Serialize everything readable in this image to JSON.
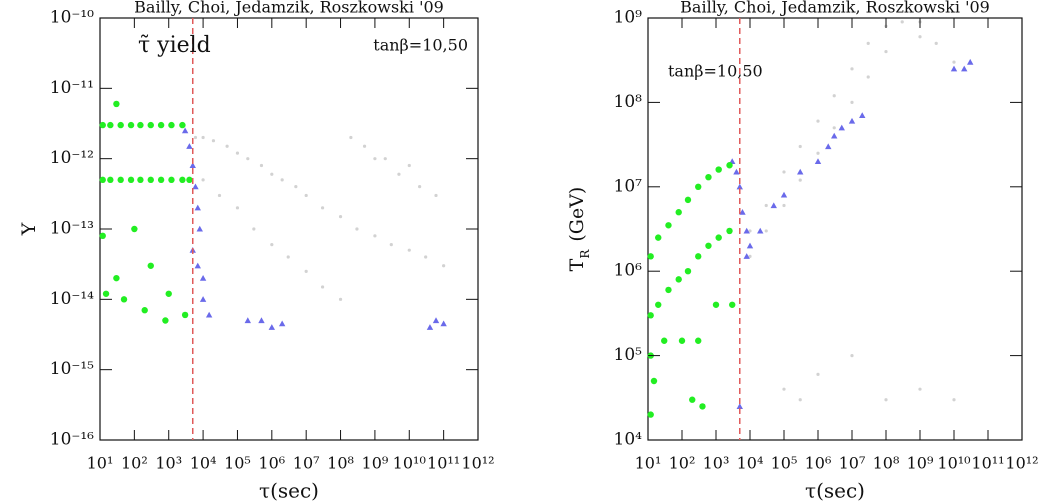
{
  "chart_data": [
    {
      "type": "scatter",
      "title": "Bailly, Choi, Jedamzik, Roszkowski '09",
      "annotations": [
        "τ̃ yield",
        "tanβ=10,50"
      ],
      "xlabel": "τ(sec)",
      "ylabel": "Y",
      "xlog": true,
      "ylog": true,
      "xlim": [
        10,
        1000000000000.0
      ],
      "ylim": [
        1e-16,
        1e-10
      ],
      "xticks": [
        {
          "value": 10,
          "label": "10¹"
        },
        {
          "value": 100,
          "label": "10²"
        },
        {
          "value": 1000,
          "label": "10³"
        },
        {
          "value": 10000.0,
          "label": "10⁴"
        },
        {
          "value": 100000.0,
          "label": "10⁵"
        },
        {
          "value": 1000000.0,
          "label": "10⁶"
        },
        {
          "value": 10000000.0,
          "label": "10⁷"
        },
        {
          "value": 100000000.0,
          "label": "10⁸"
        },
        {
          "value": 1000000000.0,
          "label": "10⁹"
        },
        {
          "value": 10000000000.0,
          "label": "10¹⁰"
        },
        {
          "value": 100000000000.0,
          "label": "10¹¹"
        },
        {
          "value": 1000000000000.0,
          "label": "10¹²"
        }
      ],
      "yticks": [
        {
          "value": 1e-16,
          "label": "10⁻¹⁶"
        },
        {
          "value": 1e-15,
          "label": "10⁻¹⁵"
        },
        {
          "value": 1e-14,
          "label": "10⁻¹⁴"
        },
        {
          "value": 1e-13,
          "label": "10⁻¹³"
        },
        {
          "value": 1e-12,
          "label": "10⁻¹²"
        },
        {
          "value": 1e-11,
          "label": "10⁻¹¹"
        },
        {
          "value": 1e-10,
          "label": "10⁻¹⁰"
        }
      ],
      "vline": {
        "value": 5000,
        "color": "#e05a5a"
      },
      "series": [
        {
          "color": "#d2d2d2",
          "marker": "dot",
          "x": [
            6000.0,
            10000.0,
            20000.0,
            50000.0,
            100000.0,
            200000.0,
            500000.0,
            1000000.0,
            2000000.0,
            5000000.0,
            10000000.0,
            30000000.0,
            100000000.0,
            300000000.0,
            1000000000.0,
            3000000000.0,
            10000000000.0,
            30000000000.0,
            100000000000.0,
            10000.0,
            30000.0,
            100000.0,
            300000.0,
            1000000.0,
            3000000.0,
            10000000.0,
            30000000.0,
            100000000.0,
            1000000000.0,
            10000000000.0,
            200000000.0,
            500000000.0,
            2000000000.0,
            5000000000.0,
            20000000000.0,
            60000000000.0
          ],
          "values": [
            2e-12,
            2e-12,
            1.8e-12,
            1.5e-12,
            1.2e-12,
            1e-12,
            8e-13,
            6e-13,
            5e-13,
            4e-13,
            3e-13,
            2e-13,
            1.5e-13,
            1e-13,
            8e-14,
            6e-14,
            5e-14,
            4e-14,
            3e-14,
            5e-13,
            3e-13,
            2e-13,
            1e-13,
            6e-14,
            4e-14,
            2.5e-14,
            1.5e-14,
            1e-14,
            1e-12,
            8e-13,
            2e-12,
            1.5e-12,
            1e-12,
            6e-13,
            4e-13,
            3e-13
          ]
        },
        {
          "color": "#6a6aea",
          "marker": "triangle",
          "x": [
            3000.0,
            4000.0,
            5000.0,
            6000.0,
            7000.0,
            8000.0,
            5000.0,
            7000.0,
            10000.0,
            10000.0,
            15000.0,
            200000.0,
            500000.0,
            1000000.0,
            2000000.0,
            40000000000.0,
            60000000000.0,
            100000000000.0
          ],
          "values": [
            2.5e-12,
            1.5e-12,
            8e-13,
            4e-13,
            2e-13,
            1e-13,
            5e-14,
            3e-14,
            2e-14,
            1e-14,
            6e-15,
            5e-15,
            5e-15,
            4e-15,
            4.5e-15,
            4e-15,
            5e-15,
            4.5e-15
          ]
        },
        {
          "color": "#22ee22",
          "marker": "circle",
          "x": [
            12,
            20,
            40,
            80,
            150,
            300,
            600,
            1200,
            2500,
            12,
            20,
            40,
            80,
            150,
            300,
            600,
            1200,
            2500,
            12,
            30,
            100,
            300,
            1000,
            3000,
            15,
            50,
            200,
            800,
            30,
            4000
          ],
          "values": [
            3e-12,
            3e-12,
            3e-12,
            3e-12,
            3e-12,
            3e-12,
            3e-12,
            3e-12,
            3e-12,
            5e-13,
            5e-13,
            5e-13,
            5e-13,
            5e-13,
            5e-13,
            5e-13,
            5e-13,
            5e-13,
            8e-14,
            2e-14,
            1e-13,
            3e-14,
            1.2e-14,
            6e-15,
            1.2e-14,
            1e-14,
            7e-15,
            5e-15,
            6e-12,
            5e-13
          ]
        }
      ]
    },
    {
      "type": "scatter",
      "title": "Bailly, Choi, Jedamzik, Roszkowski '09",
      "annotations": [
        "tanβ=10,50"
      ],
      "xlabel": "τ(sec)",
      "ylabel": "T",
      "ylabel_subscript": "R",
      "ylabel_unit": "(GeV)",
      "xlog": true,
      "ylog": true,
      "xlim": [
        10,
        1000000000000.0
      ],
      "ylim": [
        10000.0,
        1000000000.0
      ],
      "xticks": [
        {
          "value": 10,
          "label": "10¹"
        },
        {
          "value": 100,
          "label": "10²"
        },
        {
          "value": 1000,
          "label": "10³"
        },
        {
          "value": 10000.0,
          "label": "10⁴"
        },
        {
          "value": 100000.0,
          "label": "10⁵"
        },
        {
          "value": 1000000.0,
          "label": "10⁶"
        },
        {
          "value": 10000000.0,
          "label": "10⁷"
        },
        {
          "value": 100000000.0,
          "label": "10⁸"
        },
        {
          "value": 1000000000.0,
          "label": "10⁹"
        },
        {
          "value": 10000000000.0,
          "label": "10¹⁰"
        },
        {
          "value": 100000000000.0,
          "label": "10¹¹"
        },
        {
          "value": 1000000000000.0,
          "label": "10¹²"
        }
      ],
      "yticks": [
        {
          "value": 10000.0,
          "label": "10⁴"
        },
        {
          "value": 100000.0,
          "label": "10⁵"
        },
        {
          "value": 1000000.0,
          "label": "10⁶"
        },
        {
          "value": 10000000.0,
          "label": "10⁷"
        },
        {
          "value": 100000000.0,
          "label": "10⁸"
        },
        {
          "value": 1000000000.0,
          "label": "10⁹"
        }
      ],
      "vline": {
        "value": 5000,
        "color": "#e05a5a"
      },
      "series": [
        {
          "color": "#d2d2d2",
          "marker": "dot",
          "x": [
            10000.0,
            30000.0,
            100000.0,
            300000.0,
            1000000.0,
            3000000.0,
            10000000.0,
            30000000.0,
            100000000.0,
            300000000.0,
            1000000000.0,
            10000.0,
            30000.0,
            100000.0,
            300000.0,
            1000000.0,
            3000000.0,
            10000000.0,
            30000000.0,
            100000000.0,
            1000000000.0,
            3000000000.0,
            10000000000.0,
            100000.0,
            300000.0,
            1000000.0,
            10000000.0,
            100000000.0,
            1000000000.0,
            10000000000.0
          ],
          "values": [
            3000000.0,
            6000000.0,
            15000000.0,
            30000000.0,
            60000000.0,
            120000000.0,
            250000000.0,
            500000000.0,
            800000000.0,
            900000000.0,
            900000000.0,
            1500000.0,
            3000000.0,
            6000000.0,
            12000000.0,
            25000000.0,
            50000000.0,
            100000000.0,
            200000000.0,
            400000000.0,
            600000000.0,
            500000000.0,
            300000000.0,
            40000.0,
            30000.0,
            60000.0,
            100000.0,
            30000.0,
            40000.0,
            30000.0
          ]
        },
        {
          "color": "#6a6aea",
          "marker": "triangle",
          "x": [
            3000.0,
            4000.0,
            5000.0,
            6000.0,
            8000.0,
            10000.0,
            20000.0,
            50000.0,
            100000.0,
            300000.0,
            1000000.0,
            2000000.0,
            3000000.0,
            5000000.0,
            10000000.0,
            20000000.0,
            10000000000.0,
            20000000000.0,
            30000000000.0,
            5000.0,
            8000.0
          ],
          "values": [
            20000000.0,
            15000000.0,
            10000000.0,
            5000000.0,
            3000000.0,
            2000000.0,
            3000000.0,
            6000000.0,
            8000000.0,
            15000000.0,
            20000000.0,
            30000000.0,
            40000000.0,
            50000000.0,
            60000000.0,
            70000000.0,
            250000000.0,
            250000000.0,
            300000000.0,
            25000.0,
            1500000.0
          ]
        },
        {
          "color": "#22ee22",
          "marker": "circle",
          "x": [
            12,
            20,
            40,
            80,
            150,
            300,
            600,
            1200,
            2500,
            12,
            20,
            40,
            80,
            150,
            300,
            600,
            1200,
            2500,
            12,
            15,
            30,
            100,
            300,
            1000,
            200,
            400,
            12,
            3000
          ],
          "values": [
            1500000.0,
            2500000.0,
            3500000.0,
            5000000.0,
            7000000.0,
            10000000.0,
            13000000.0,
            16000000.0,
            18000000.0,
            300000.0,
            400000.0,
            600000.0,
            800000.0,
            1000000.0,
            1500000.0,
            2000000.0,
            2500000.0,
            3000000.0,
            100000.0,
            50000.0,
            150000.0,
            150000.0,
            150000.0,
            400000.0,
            30000.0,
            25000.0,
            20000.0,
            400000.0
          ]
        }
      ]
    }
  ]
}
